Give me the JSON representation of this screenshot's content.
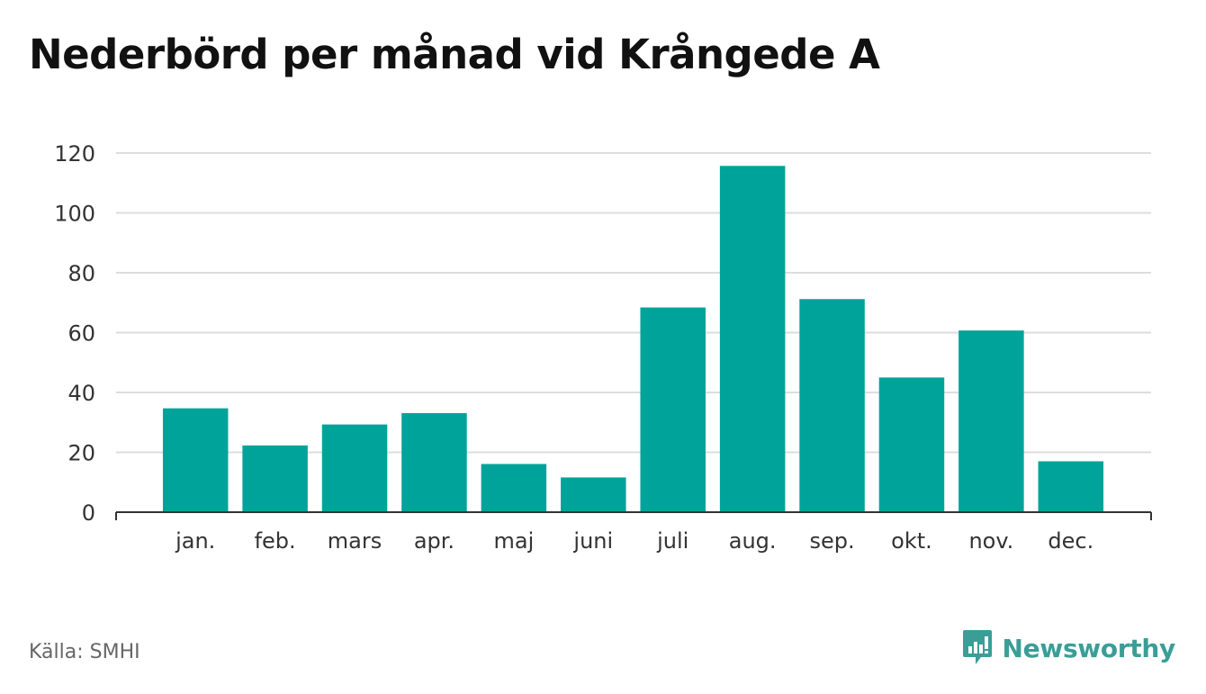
{
  "title": "Nederbörd per månad vid Krångede A",
  "source": "Källa: SMHI",
  "brand": {
    "name": "Newsworthy",
    "icon": "newsworthy-logo-icon",
    "color": "#3a9e97"
  },
  "colors": {
    "bar": "#00a39a",
    "grid": "#dddddd",
    "axis": "#333333",
    "text": "#333333"
  },
  "chart_data": {
    "type": "bar",
    "categories": [
      "jan.",
      "feb.",
      "mars",
      "apr.",
      "maj",
      "juni",
      "juli",
      "aug.",
      "sep.",
      "okt.",
      "nov.",
      "dec."
    ],
    "values": [
      34.7,
      22.3,
      29.3,
      33.1,
      16.1,
      11.6,
      68.4,
      115.7,
      71.2,
      45.0,
      60.7,
      17.0
    ],
    "title": "Nederbörd per månad vid Krångede A",
    "xlabel": "",
    "ylabel": "",
    "ylim": [
      0,
      120
    ],
    "yticks": [
      0,
      20,
      40,
      60,
      80,
      100,
      120
    ],
    "grid": true,
    "legend": "none"
  }
}
